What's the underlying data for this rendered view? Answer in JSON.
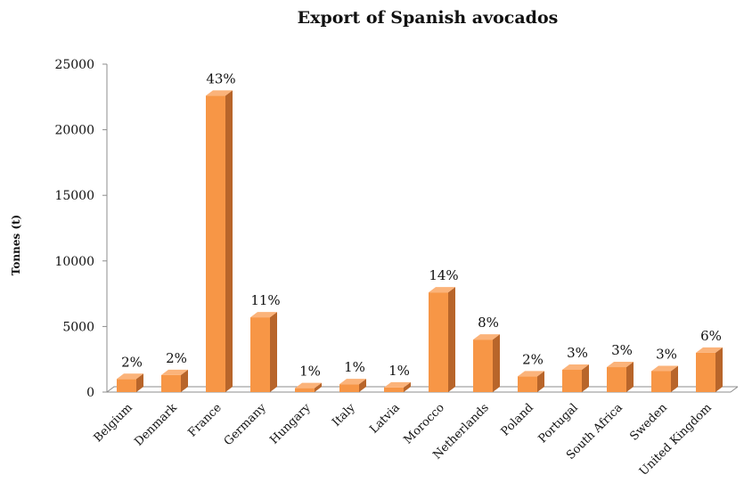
{
  "chart_data": {
    "type": "bar",
    "title": "Export of Spanish avocados",
    "xlabel": "",
    "ylabel": "Tonnes (t)",
    "ylim": [
      0,
      25000
    ],
    "yticks": [
      0,
      5000,
      10000,
      15000,
      20000,
      25000
    ],
    "categories": [
      "Belgium",
      "Denmark",
      "France",
      "Germany",
      "Hungary",
      "Italy",
      "Latvia",
      "Morocco",
      "Netherlands",
      "Poland",
      "Portugal",
      "South Africa",
      "Sweden",
      "United Kingdom"
    ],
    "values": [
      1000,
      1300,
      22600,
      5700,
      300,
      600,
      350,
      7600,
      4000,
      1200,
      1700,
      1900,
      1600,
      3000
    ],
    "data_labels": [
      "2%",
      "2%",
      "43%",
      "11%",
      "1%",
      "1%",
      "1%",
      "14%",
      "8%",
      "2%",
      "3%",
      "3%",
      "3%",
      "6%"
    ],
    "bar_color": "#F79646",
    "bar_side_color": "#B8652A",
    "bar_top_color": "#FBB37A",
    "grid": false,
    "legend": "none"
  }
}
